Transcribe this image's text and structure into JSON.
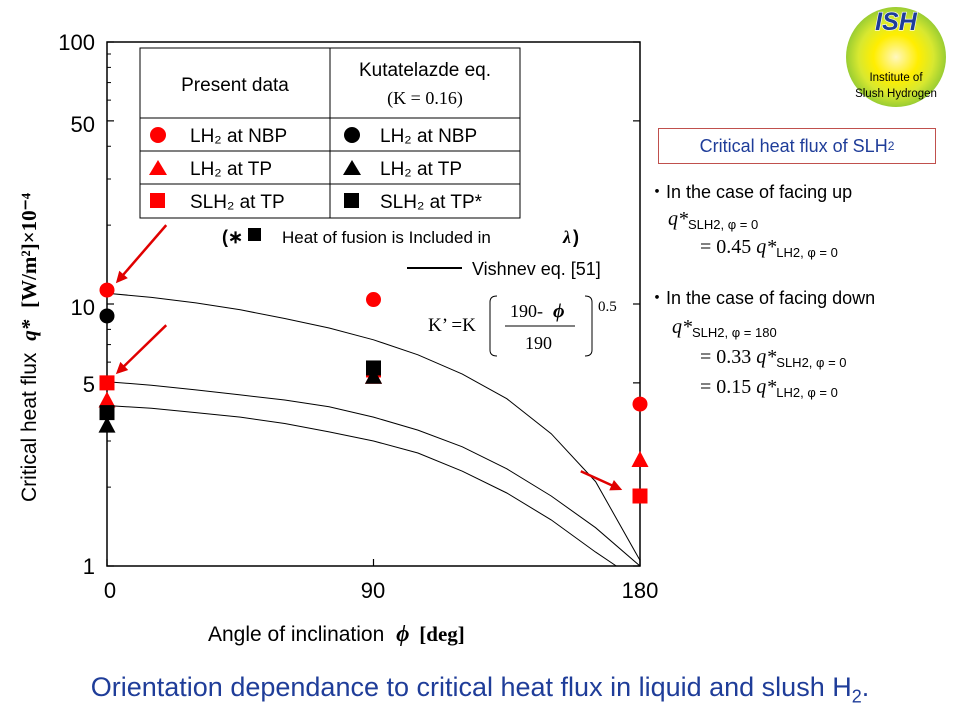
{
  "logo": {
    "title": "ISH",
    "line1": "Institute of",
    "line2": "Slush Hydrogen",
    "colors": {
      "outer": "#9acd32",
      "inner": "#ffee00",
      "title": "#1f3d99"
    }
  },
  "chart_data": {
    "type": "scatter",
    "title": "",
    "xlabel_text": "Angle of inclination",
    "xlabel_symbol": "ϕ",
    "xlabel_unit": "[deg]",
    "ylabel_text": "Critical heat flux",
    "ylabel_symbol": "q*",
    "ylabel_unit": "[W/m²]×10⁻⁴",
    "xlim": [
      0,
      180
    ],
    "ylim": [
      1,
      100
    ],
    "yscale": "log",
    "x_ticks": [
      0,
      90,
      180
    ],
    "x_tick_labels": [
      "0",
      "90",
      "180"
    ],
    "y_ticks": [
      1,
      5,
      10,
      50,
      100
    ],
    "y_tick_labels": [
      "1",
      "5",
      "10",
      "50",
      "100"
    ],
    "series": [
      {
        "name": "LH2 at NBP (present data)",
        "marker": "circle",
        "color": "#ff0000",
        "x": [
          0,
          90,
          180
        ],
        "y": [
          11.3,
          10.4,
          4.15
        ]
      },
      {
        "name": "LH2 at TP (present data)",
        "marker": "triangle",
        "color": "#ff0000",
        "x": [
          0,
          90,
          180
        ],
        "y": [
          4.3,
          5.3,
          2.55
        ]
      },
      {
        "name": "SLH2 at TP (present data)",
        "marker": "square",
        "color": "#ff0000",
        "x": [
          0,
          90,
          180
        ],
        "y": [
          5.0,
          5.6,
          1.85
        ]
      },
      {
        "name": "LH2 at NBP (Kutatelazde eq.)",
        "marker": "circle",
        "color": "#000000",
        "x": [
          0
        ],
        "y": [
          9.0
        ]
      },
      {
        "name": "LH2 at TP (Kutatelazde eq.)",
        "marker": "triangle",
        "color": "#000000",
        "x": [
          0,
          90
        ],
        "y": [
          3.45,
          5.3
        ]
      },
      {
        "name": "SLH2 at TP* (Kutatelazde eq.)",
        "marker": "square",
        "color": "#000000",
        "x": [
          0,
          90
        ],
        "y": [
          3.85,
          5.7
        ]
      }
    ],
    "curves": [
      {
        "name": "Vishnev eq. [51] (upper)",
        "x": [
          0,
          15,
          30,
          45,
          60,
          75,
          90,
          105,
          120,
          135,
          150,
          165,
          180
        ],
        "y": [
          11.0,
          10.6,
          10.1,
          9.5,
          8.8,
          8.1,
          7.3,
          6.4,
          5.4,
          4.35,
          3.2,
          2.1,
          1.05
        ]
      },
      {
        "name": "Vishnev eq. [51] (middle)",
        "x": [
          0,
          15,
          30,
          45,
          60,
          75,
          90,
          105,
          120,
          135,
          150,
          165,
          180
        ],
        "y": [
          5.05,
          4.9,
          4.7,
          4.5,
          4.3,
          4.05,
          3.7,
          3.3,
          2.85,
          2.35,
          1.85,
          1.4,
          1.0
        ]
      },
      {
        "name": "Vishnev eq. [51] (lower)",
        "x": [
          0,
          15,
          30,
          45,
          60,
          75,
          90,
          105,
          120,
          135,
          150,
          165,
          172
        ],
        "y": [
          4.1,
          4.0,
          3.85,
          3.7,
          3.5,
          3.25,
          3.0,
          2.7,
          2.3,
          1.9,
          1.5,
          1.13,
          1.0
        ]
      }
    ],
    "arrows": [
      {
        "from": [
          20,
          20.0
        ],
        "to": [
          3,
          12.0
        ]
      },
      {
        "from": [
          20,
          8.3
        ],
        "to": [
          3,
          5.4
        ]
      },
      {
        "from": [
          160,
          2.3
        ],
        "to": [
          174,
          1.95
        ]
      }
    ],
    "legend": {
      "header_present": "Present data",
      "header_kutat": "Kutatelazde eq.",
      "header_kutat_k": "(K = 0.16)",
      "rows": [
        {
          "present": "LH₂ at NBP",
          "kutat": "LH₂ at NBP",
          "marker": "circle"
        },
        {
          "present": "LH₂ at TP",
          "kutat": "LH₂ at TP",
          "marker": "triangle"
        },
        {
          "present": "SLH₂ at TP",
          "kutat": "SLH₂ at TP*",
          "marker": "square"
        }
      ],
      "footnote_open": "(∗",
      "footnote_text": "Heat of fusion is Included in",
      "footnote_lambda": "λ",
      "footnote_close": ")",
      "vishnev_label": "Vishnev eq. [51]"
    },
    "formula": {
      "lhs": "K’ =K",
      "numerator": "190-",
      "numerator_symbol": "ϕ",
      "denominator": "190",
      "exponent": "0.5"
    }
  },
  "notes": {
    "box_title": "Critical heat flux of SLH",
    "box_title_sub": "2",
    "facing_up": "・In the case of facing up",
    "facing_down": "・In the case of facing down",
    "q": "q*",
    "eq_sign": "=",
    "up_lhs_sub": "SLH2, φ = 0",
    "up_coef": "0.45",
    "up_rhs_sub": "LH2, φ = 0",
    "down_lhs_sub": "SLH2, φ = 180",
    "down_coef1": "0.33",
    "down_rhs1_sub": "SLH2, φ = 0",
    "down_coef2": "0.15",
    "down_rhs2_sub": "LH2, φ = 0"
  },
  "footer": {
    "text": "Orientation dependance to critical heat flux in liquid and slush H",
    "sub": "2",
    "tail": "."
  }
}
